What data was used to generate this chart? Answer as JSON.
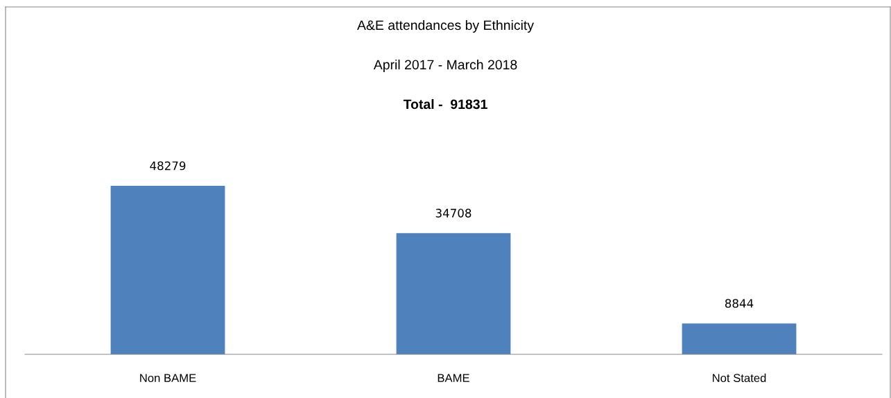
{
  "chart_data": {
    "type": "bar",
    "title": "A&E attendances by Ethnicity",
    "subtitle": "April 2017 - March 2018",
    "annotations": [
      "Total -  91831"
    ],
    "categories": [
      "Non BAME",
      "BAME",
      "Not Stated"
    ],
    "values": [
      48279,
      34708,
      8844
    ],
    "color": "#4f81bd",
    "data_labels": true,
    "grid": false,
    "legend": false
  }
}
